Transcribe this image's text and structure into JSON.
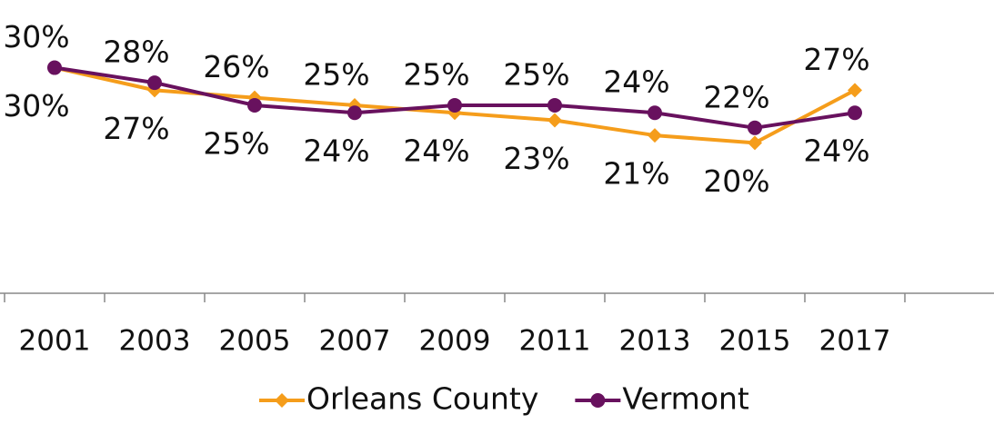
{
  "chart_data": {
    "type": "line",
    "categories": [
      "2001",
      "2003",
      "2005",
      "2007",
      "2009",
      "2011",
      "2013",
      "2015",
      "2017",
      null
    ],
    "series": [
      {
        "name": "Orleans County",
        "color": "#f59d1b",
        "marker": "diamond",
        "values": [
          30,
          27,
          26,
          25,
          24,
          23,
          21,
          20,
          27,
          null
        ],
        "value_labels": [
          "30%",
          "27%",
          "26%",
          "25%",
          "24%",
          "23%",
          "21%",
          "20%",
          "27%",
          null
        ]
      },
      {
        "name": "Vermont",
        "color": "#68115e",
        "marker": "circle",
        "values": [
          30,
          28,
          25,
          24,
          25,
          25,
          24,
          22,
          24,
          null
        ],
        "value_labels": [
          "30%",
          "28%",
          "25%",
          "24%",
          "25%",
          "25%",
          "24%",
          "22%",
          "24%",
          null
        ]
      }
    ],
    "ylim": [
      0,
      39
    ],
    "grid": false,
    "legend": "bottom"
  }
}
